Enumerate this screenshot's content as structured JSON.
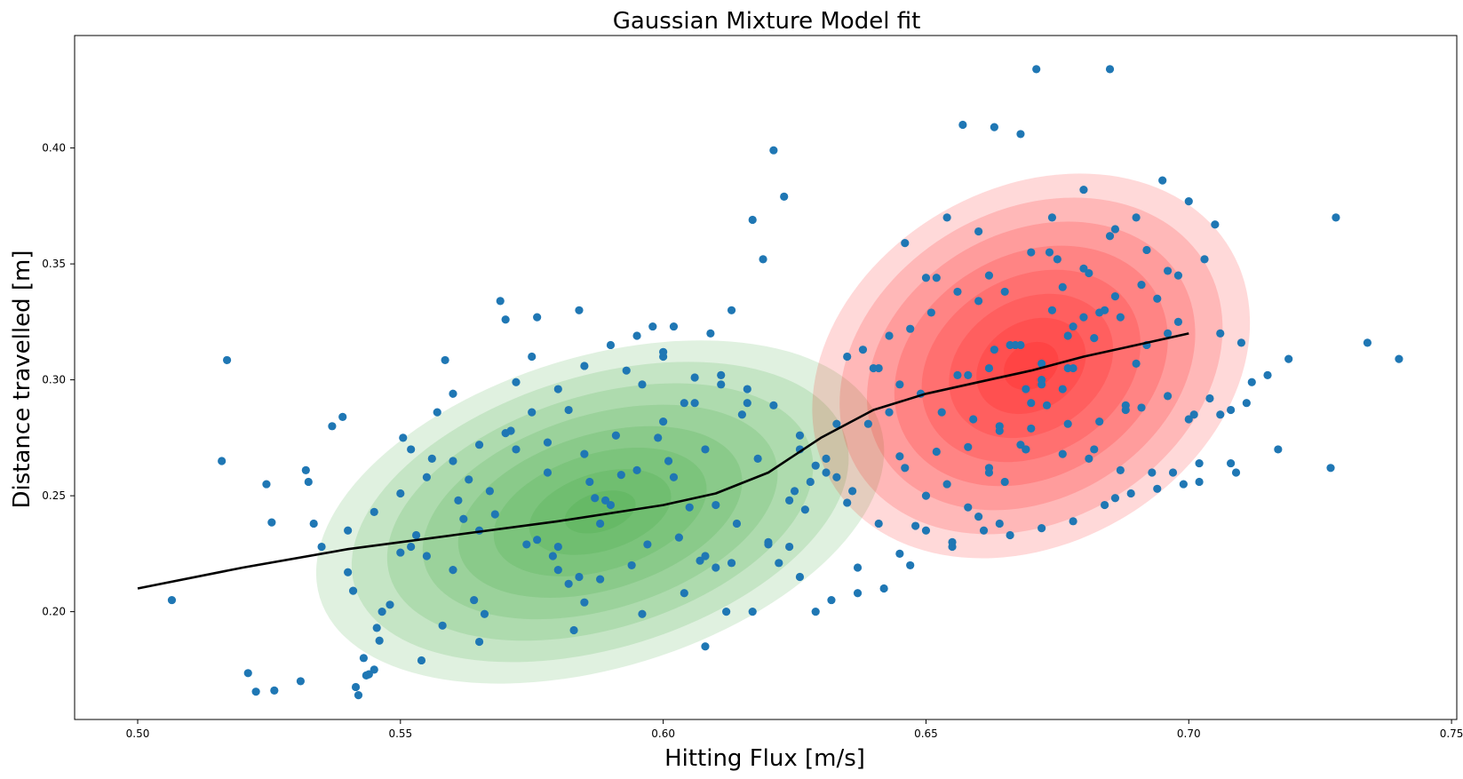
{
  "chart_data": {
    "type": "scatter",
    "title": "Gaussian Mixture Model fit",
    "xlabel": "Hitting Flux [m/s]",
    "ylabel": "Distance travelled [m]",
    "xlim": [
      0.488,
      0.751
    ],
    "ylim": [
      0.1535,
      0.4485
    ],
    "xticks": [
      0.5,
      0.55,
      0.6,
      0.65,
      0.7,
      0.75
    ],
    "yticks": [
      0.2,
      0.25,
      0.3,
      0.35,
      0.4
    ],
    "grid": false,
    "colors": {
      "points": "#1f77b4",
      "green": "#2ca02c",
      "red": "#ff0000",
      "curve": "#000000"
    },
    "components": [
      {
        "name": "",
        "color": "#2ca02c",
        "mean": [
          0.588,
          0.243
        ],
        "semi_axes": [
          0.075,
          0.072
        ],
        "angle_deg": 18,
        "levels": 8
      },
      {
        "name": "",
        "color": "#ff0000",
        "mean": [
          0.67,
          0.306
        ],
        "semi_axes": [
          0.05,
          0.08
        ],
        "angle_deg": 52,
        "levels": 8
      }
    ],
    "regression_curve": {
      "x": [
        0.5,
        0.52,
        0.54,
        0.56,
        0.58,
        0.6,
        0.61,
        0.62,
        0.63,
        0.64,
        0.65,
        0.66,
        0.67,
        0.68,
        0.69,
        0.7
      ],
      "y": [
        0.21,
        0.219,
        0.227,
        0.233,
        0.239,
        0.246,
        0.251,
        0.26,
        0.275,
        0.287,
        0.294,
        0.299,
        0.304,
        0.31,
        0.315,
        0.32
      ]
    },
    "scatter": {
      "x": [
        0.5065,
        0.517,
        0.516,
        0.5245,
        0.5255,
        0.521,
        0.5225,
        0.526,
        0.531,
        0.532,
        0.5325,
        0.5335,
        0.535,
        0.537,
        0.539,
        0.54,
        0.541,
        0.543,
        0.5435,
        0.545,
        0.546,
        0.542,
        0.5415,
        0.544,
        0.5455,
        0.5465,
        0.548,
        0.55,
        0.5505,
        0.552,
        0.553,
        0.555,
        0.557,
        0.5585,
        0.56,
        0.561,
        0.563,
        0.565,
        0.567,
        0.569,
        0.57,
        0.572,
        0.575,
        0.576,
        0.578,
        0.58,
        0.582,
        0.583,
        0.584,
        0.585,
        0.587,
        0.588,
        0.59,
        0.592,
        0.594,
        0.596,
        0.598,
        0.6,
        0.601,
        0.603,
        0.605,
        0.607,
        0.609,
        0.611,
        0.613,
        0.615,
        0.617,
        0.619,
        0.621,
        0.623,
        0.625,
        0.626,
        0.589,
        0.578,
        0.565,
        0.572,
        0.584,
        0.596,
        0.604,
        0.608,
        0.612,
        0.616,
        0.571,
        0.579,
        0.585,
        0.593,
        0.602,
        0.606,
        0.556,
        0.56,
        0.564,
        0.552,
        0.554,
        0.558,
        0.562,
        0.566,
        0.568,
        0.574,
        0.576,
        0.58,
        0.582,
        0.586,
        0.588,
        0.591,
        0.595,
        0.597,
        0.599,
        0.6,
        0.602,
        0.604,
        0.608,
        0.61,
        0.614,
        0.618,
        0.62,
        0.622,
        0.624,
        0.627,
        0.629,
        0.631,
        0.633,
        0.635,
        0.637,
        0.639,
        0.641,
        0.643,
        0.645,
        0.646,
        0.648,
        0.65,
        0.652,
        0.654,
        0.656,
        0.658,
        0.66,
        0.662,
        0.664,
        0.666,
        0.668,
        0.67,
        0.672,
        0.674,
        0.676,
        0.678,
        0.68,
        0.682,
        0.684,
        0.686,
        0.688,
        0.69,
        0.692,
        0.694,
        0.696,
        0.698,
        0.7,
        0.702,
        0.704,
        0.706,
        0.708,
        0.71,
        0.712,
        0.715,
        0.717,
        0.719,
        0.727,
        0.728,
        0.734,
        0.74,
        0.65,
        0.6735,
        0.686,
        0.685,
        0.671,
        0.657,
        0.663,
        0.668,
        0.674,
        0.68,
        0.69,
        0.695,
        0.7,
        0.705,
        0.654,
        0.66,
        0.665,
        0.67,
        0.675,
        0.68,
        0.685,
        0.692,
        0.698,
        0.703,
        0.662,
        0.656,
        0.651,
        0.647,
        0.643,
        0.638,
        0.635,
        0.64,
        0.645,
        0.649,
        0.653,
        0.659,
        0.664,
        0.669,
        0.676,
        0.681,
        0.687,
        0.693,
        0.697,
        0.702,
        0.708,
        0.709,
        0.633,
        0.628,
        0.624,
        0.62,
        0.617,
        0.613,
        0.608,
        0.61,
        0.626,
        0.629,
        0.632,
        0.637,
        0.642,
        0.647,
        0.655,
        0.661,
        0.666,
        0.672,
        0.678,
        0.684,
        0.689,
        0.694,
        0.699,
        0.646,
        0.652,
        0.658,
        0.664,
        0.669,
        0.673,
        0.677,
        0.683,
        0.688,
        0.691,
        0.696,
        0.701,
        0.706,
        0.711,
        0.658,
        0.663,
        0.668,
        0.672,
        0.677,
        0.682,
        0.687,
        0.677,
        0.67,
        0.662,
        0.665,
        0.66,
        0.655,
        0.65,
        0.645,
        0.641,
        0.636,
        0.631,
        0.626,
        0.621,
        0.616,
        0.611,
        0.606,
        0.6,
        0.595,
        0.59,
        0.585,
        0.58,
        0.575,
        0.57,
        0.565,
        0.56,
        0.555,
        0.55,
        0.545,
        0.54,
        0.667,
        0.662,
        0.678,
        0.683,
        0.672,
        0.669,
        0.676,
        0.681,
        0.686,
        0.691,
        0.696
      ],
      "y": [
        0.205,
        0.3085,
        0.265,
        0.255,
        0.2385,
        0.1735,
        0.1655,
        0.166,
        0.17,
        0.261,
        0.256,
        0.238,
        0.228,
        0.28,
        0.284,
        0.217,
        0.209,
        0.18,
        0.1725,
        0.175,
        0.1875,
        0.164,
        0.1675,
        0.173,
        0.193,
        0.2,
        0.203,
        0.2255,
        0.275,
        0.27,
        0.233,
        0.224,
        0.286,
        0.3085,
        0.294,
        0.248,
        0.257,
        0.187,
        0.252,
        0.334,
        0.326,
        0.299,
        0.31,
        0.327,
        0.273,
        0.228,
        0.212,
        0.192,
        0.33,
        0.204,
        0.249,
        0.238,
        0.246,
        0.259,
        0.22,
        0.298,
        0.323,
        0.31,
        0.265,
        0.232,
        0.245,
        0.222,
        0.32,
        0.298,
        0.33,
        0.285,
        0.369,
        0.352,
        0.399,
        0.379,
        0.252,
        0.27,
        0.248,
        0.26,
        0.235,
        0.27,
        0.215,
        0.199,
        0.208,
        0.185,
        0.2,
        0.29,
        0.278,
        0.224,
        0.268,
        0.304,
        0.323,
        0.29,
        0.266,
        0.218,
        0.205,
        0.228,
        0.179,
        0.194,
        0.24,
        0.199,
        0.242,
        0.229,
        0.231,
        0.218,
        0.287,
        0.256,
        0.214,
        0.276,
        0.261,
        0.229,
        0.275,
        0.282,
        0.258,
        0.29,
        0.27,
        0.246,
        0.238,
        0.266,
        0.23,
        0.221,
        0.228,
        0.244,
        0.263,
        0.26,
        0.281,
        0.247,
        0.219,
        0.281,
        0.305,
        0.286,
        0.267,
        0.359,
        0.237,
        0.25,
        0.344,
        0.255,
        0.302,
        0.245,
        0.334,
        0.26,
        0.238,
        0.315,
        0.272,
        0.29,
        0.3,
        0.33,
        0.296,
        0.305,
        0.327,
        0.27,
        0.33,
        0.249,
        0.289,
        0.307,
        0.315,
        0.335,
        0.32,
        0.325,
        0.283,
        0.256,
        0.292,
        0.32,
        0.287,
        0.316,
        0.299,
        0.302,
        0.27,
        0.309,
        0.262,
        0.37,
        0.316,
        0.309,
        0.344,
        0.355,
        0.365,
        0.434,
        0.434,
        0.41,
        0.409,
        0.406,
        0.37,
        0.382,
        0.37,
        0.386,
        0.377,
        0.367,
        0.37,
        0.364,
        0.338,
        0.355,
        0.352,
        0.348,
        0.362,
        0.356,
        0.345,
        0.352,
        0.345,
        0.338,
        0.329,
        0.322,
        0.319,
        0.313,
        0.31,
        0.305,
        0.298,
        0.294,
        0.286,
        0.283,
        0.278,
        0.27,
        0.268,
        0.266,
        0.261,
        0.26,
        0.26,
        0.264,
        0.264,
        0.26,
        0.258,
        0.256,
        0.248,
        0.229,
        0.2,
        0.221,
        0.224,
        0.219,
        0.215,
        0.2,
        0.205,
        0.208,
        0.21,
        0.22,
        0.228,
        0.235,
        0.233,
        0.236,
        0.239,
        0.246,
        0.251,
        0.253,
        0.255,
        0.262,
        0.269,
        0.271,
        0.28,
        0.27,
        0.289,
        0.281,
        0.282,
        0.287,
        0.288,
        0.293,
        0.285,
        0.285,
        0.29,
        0.302,
        0.313,
        0.315,
        0.307,
        0.319,
        0.318,
        0.327,
        0.305,
        0.279,
        0.262,
        0.256,
        0.241,
        0.23,
        0.235,
        0.225,
        0.238,
        0.252,
        0.266,
        0.276,
        0.289,
        0.296,
        0.302,
        0.301,
        0.312,
        0.319,
        0.315,
        0.306,
        0.296,
        0.286,
        0.277,
        0.272,
        0.265,
        0.258,
        0.251,
        0.243,
        0.235,
        0.315,
        0.305,
        0.323,
        0.329,
        0.298,
        0.296,
        0.34,
        0.346,
        0.336,
        0.341,
        0.347
      ]
    }
  }
}
